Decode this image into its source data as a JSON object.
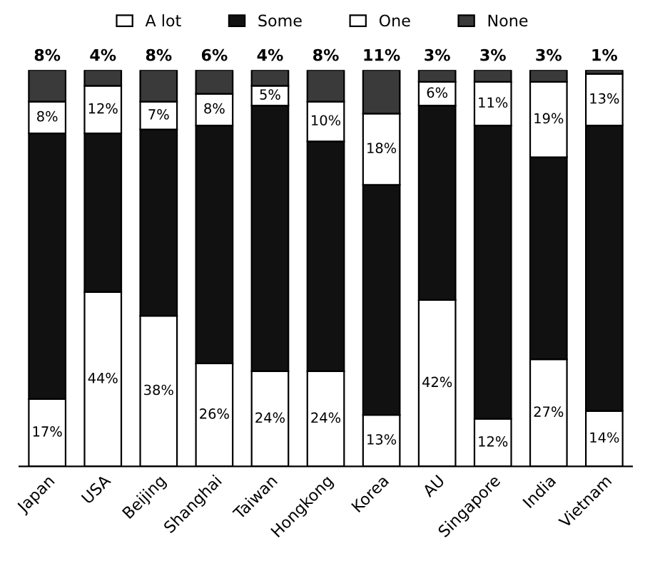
{
  "chart_data": {
    "type": "bar",
    "stacked": true,
    "categories": [
      "Japan",
      "USA",
      "Beijing",
      "Shanghai",
      "Taiwan",
      "Hongkong",
      "Korea",
      "AU",
      "Singapore",
      "India",
      "Vietnam"
    ],
    "ylim": [
      0,
      100
    ],
    "tick_labels": "x",
    "legend": "top",
    "grid": false,
    "series": [
      {
        "name": "A lot",
        "color": "#ffffff",
        "values": [
          17,
          44,
          38,
          26,
          24,
          24,
          13,
          42,
          12,
          27,
          14
        ],
        "value_labels": [
          "17%",
          "44%",
          "38%",
          "26%",
          "24%",
          "24%",
          "13%",
          "42%",
          "12%",
          "27%",
          "14%"
        ]
      },
      {
        "name": "Some",
        "color": "#111111",
        "values": [
          67,
          40,
          47,
          60,
          67,
          58,
          58,
          49,
          74,
          51,
          72
        ],
        "value_labels": [
          null,
          null,
          null,
          null,
          null,
          null,
          null,
          null,
          null,
          null,
          null
        ]
      },
      {
        "name": "One",
        "color": "#ffffff",
        "values": [
          8,
          12,
          7,
          8,
          5,
          10,
          18,
          6,
          11,
          19,
          13
        ],
        "value_labels": [
          "8%",
          "12%",
          "7%",
          "8%",
          "5%",
          "10%",
          "18%",
          "6%",
          "11%",
          "19%",
          "13%"
        ]
      },
      {
        "name": "None",
        "color": "#3a3a3a",
        "values": [
          8,
          4,
          8,
          6,
          4,
          8,
          11,
          3,
          3,
          3,
          1
        ],
        "value_labels": [
          "8%",
          "4%",
          "8%",
          "6%",
          "4%",
          "8%",
          "11%",
          "3%",
          "3%",
          "3%",
          "1%"
        ]
      }
    ]
  }
}
